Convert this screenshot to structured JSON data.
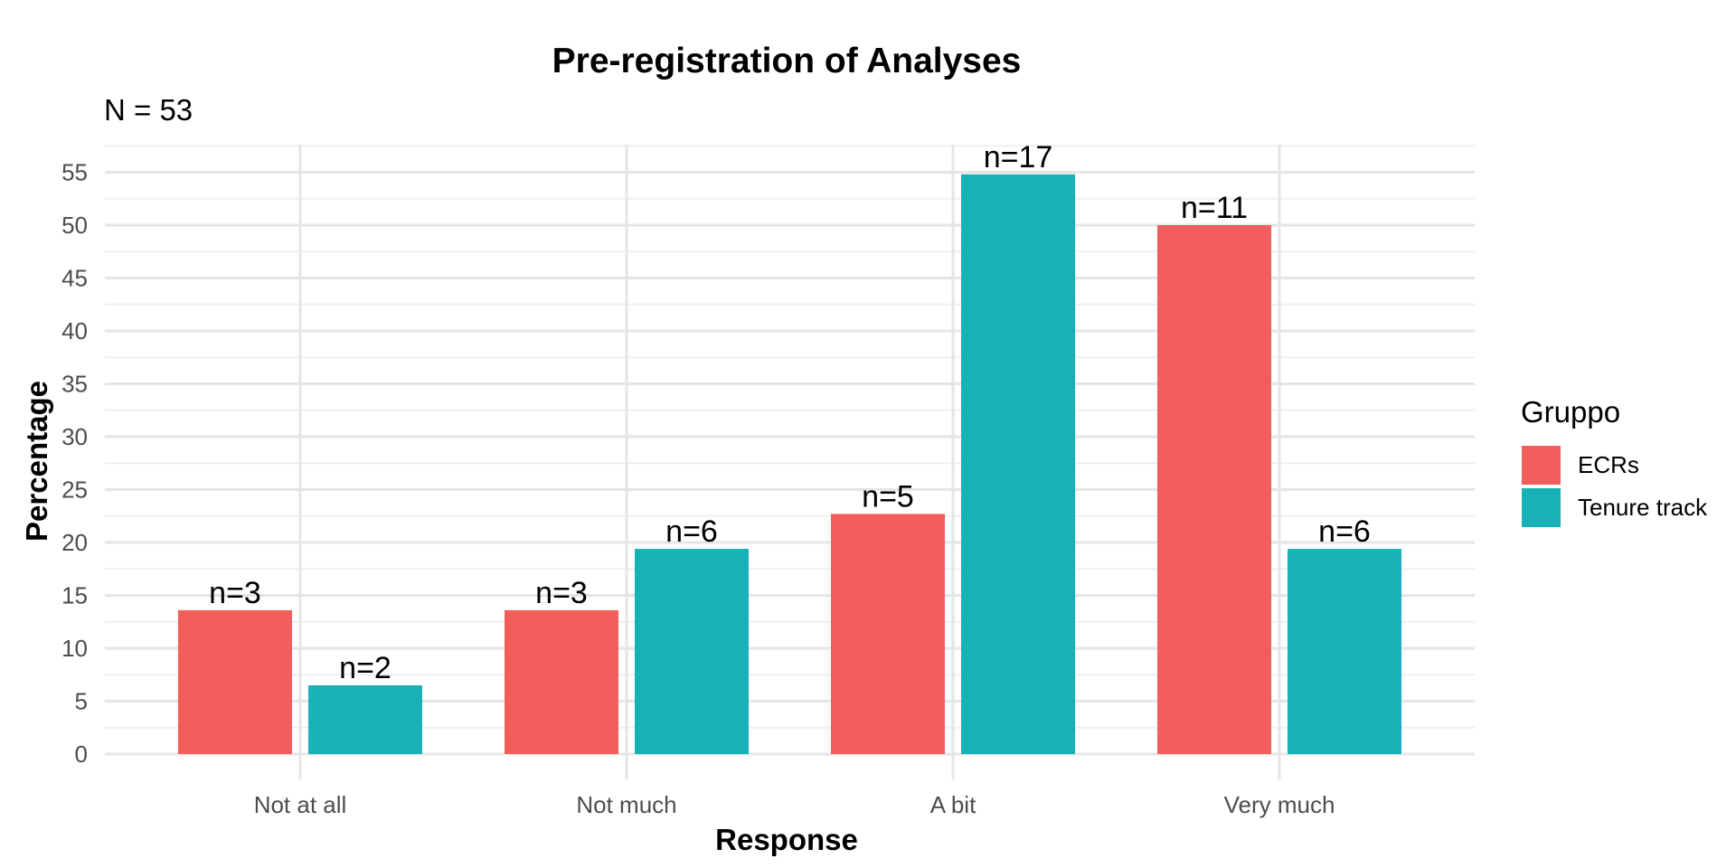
{
  "chart_data": {
    "type": "bar",
    "title": "Pre-registration of Analyses",
    "subtitle": "N = 53",
    "xlabel": "Response",
    "ylabel": "Percentage",
    "categories": [
      "Not at all",
      "Not much",
      "A bit",
      "Very much"
    ],
    "series": [
      {
        "name": "ECRs",
        "color": "#F25E5B",
        "values": [
          13.6,
          13.6,
          22.7,
          50.0
        ],
        "labels": [
          "n=3",
          "n=3",
          "n=5",
          "n=11"
        ]
      },
      {
        "name": "Tenure track",
        "color": "#17B2B5",
        "values": [
          6.5,
          19.4,
          54.8,
          19.4
        ],
        "labels": [
          "n=2",
          "n=6",
          "n=17",
          "n=6"
        ]
      }
    ],
    "ylim": [
      0,
      57.5
    ],
    "yticks": [
      "0",
      "5",
      "10",
      "15",
      "20",
      "25",
      "30",
      "35",
      "40",
      "45",
      "50",
      "55"
    ],
    "grid": true,
    "legend": {
      "title": "Gruppo",
      "position": "right"
    }
  }
}
